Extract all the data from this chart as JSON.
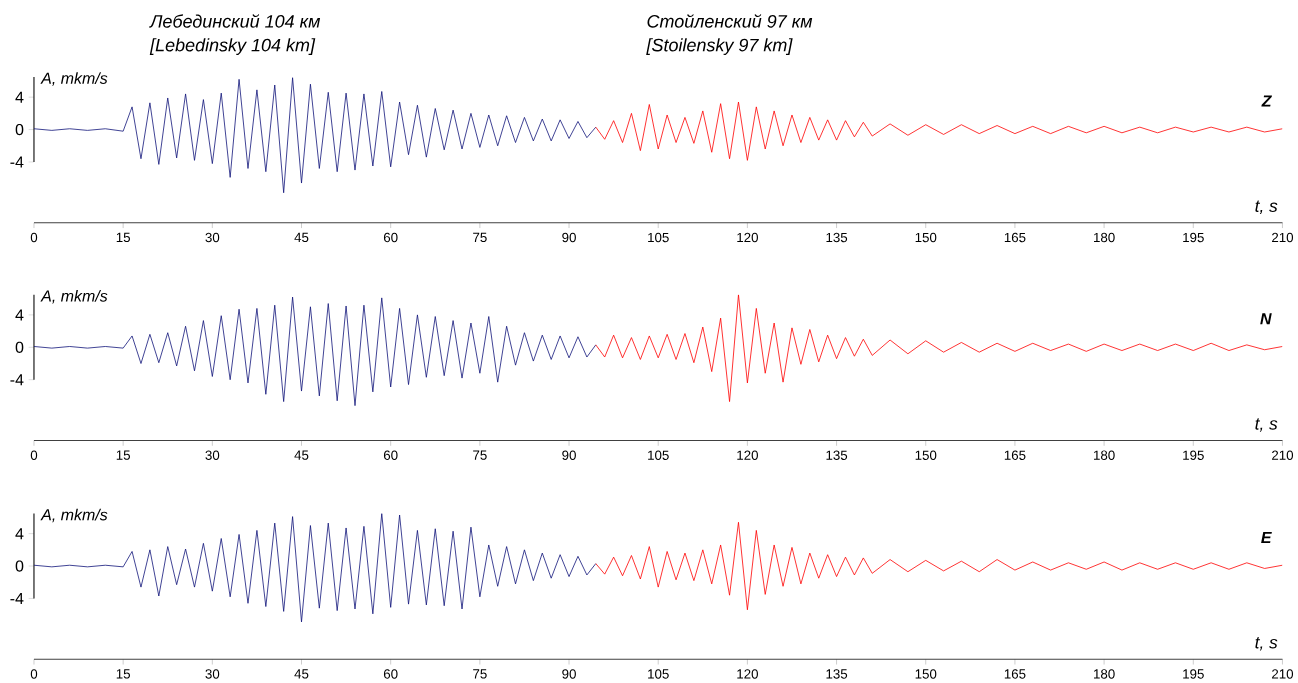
{
  "chart_data": [
    {
      "type": "line",
      "title": "Z",
      "xlabel": "t, s",
      "ylabel": "A, mkm/s",
      "xlim": [
        0,
        210
      ],
      "xticks": [
        0,
        15,
        30,
        45,
        60,
        75,
        90,
        105,
        120,
        135,
        150,
        165,
        180,
        195,
        210
      ],
      "ylim": [
        -11.5,
        6.5
      ],
      "yticks": [
        -4,
        0,
        4
      ],
      "annotations": [
        "Лебединский 104 км",
        "[Lebedinsky 104 km]",
        "Стойленский 97 км",
        "[Stoilensky 97 km]"
      ],
      "series": [
        {
          "color": "#10147a",
          "x": [
            0,
            3,
            6,
            9,
            12,
            15,
            16.5,
            18,
            19.5,
            21,
            22.5,
            24,
            25.5,
            27,
            28.5,
            30,
            31.5,
            33,
            34.5,
            36,
            37.5,
            39,
            40.5,
            42,
            43.5,
            45,
            46.5,
            48,
            49.5,
            51,
            52.5,
            54,
            55.5,
            57,
            58.5,
            60,
            61.5,
            63,
            64.5,
            66,
            67.5,
            69,
            70.5,
            72,
            73.5,
            75,
            76.5,
            78,
            79.5,
            81,
            82.5,
            84,
            85.5,
            87,
            88.5,
            90,
            91.5,
            93,
            94.5
          ],
          "values": [
            0.1,
            -0.1,
            0.1,
            -0.1,
            0.1,
            -0.2,
            2.8,
            -3.6,
            3.3,
            -4.3,
            3.9,
            -3.5,
            4.4,
            -3.8,
            3.7,
            -4.2,
            4.5,
            -5.9,
            6.2,
            -4.8,
            4.9,
            -5.2,
            5.5,
            -7.8,
            6.4,
            -6.6,
            5.6,
            -4.8,
            4.6,
            -5.2,
            4.5,
            -5.0,
            4.4,
            -4.5,
            4.7,
            -4.6,
            3.4,
            -3.1,
            3.0,
            -3.4,
            2.6,
            -2.5,
            2.4,
            -2.4,
            2.0,
            -2.2,
            1.8,
            -2.0,
            1.7,
            -1.6,
            1.5,
            -1.4,
            1.3,
            -1.4,
            1.2,
            -1.1,
            1.0,
            -1.0,
            0.3
          ]
        },
        {
          "color": "#ff0000",
          "x": [
            94.5,
            96,
            97.5,
            99,
            100.5,
            102,
            103.5,
            105,
            106.5,
            108,
            109.5,
            111,
            112.5,
            114,
            115.5,
            117,
            118.5,
            120,
            121.5,
            123,
            124.5,
            126,
            127.5,
            129,
            130.5,
            132,
            133.5,
            135,
            136.5,
            138,
            139.5,
            141,
            144,
            147,
            150,
            153,
            156,
            159,
            162,
            165,
            168,
            171,
            174,
            177,
            180,
            183,
            186,
            189,
            192,
            195,
            198,
            201,
            204,
            207,
            210
          ],
          "values": [
            0.3,
            -1.2,
            1.1,
            -1.6,
            2.0,
            -2.6,
            3.1,
            -2.4,
            1.8,
            -1.6,
            1.5,
            -1.7,
            2.3,
            -2.8,
            3.2,
            -3.6,
            3.4,
            -3.8,
            2.8,
            -2.4,
            2.3,
            -2.0,
            1.8,
            -1.6,
            1.5,
            -1.3,
            1.2,
            -1.3,
            1.1,
            -0.9,
            0.9,
            -0.8,
            0.7,
            -0.7,
            0.6,
            -0.6,
            0.6,
            -0.5,
            0.5,
            -0.5,
            0.4,
            -0.5,
            0.4,
            -0.4,
            0.4,
            -0.4,
            0.3,
            -0.4,
            0.3,
            -0.3,
            0.3,
            -0.3,
            0.3,
            -0.3,
            0.1
          ]
        }
      ]
    },
    {
      "type": "line",
      "title": "N",
      "xlabel": "t, s",
      "ylabel": "A, mkm/s",
      "xlim": [
        0,
        210
      ],
      "xticks": [
        0,
        15,
        30,
        45,
        60,
        75,
        90,
        105,
        120,
        135,
        150,
        165,
        180,
        195,
        210
      ],
      "ylim": [
        -11.5,
        6.5
      ],
      "yticks": [
        -4,
        0,
        4
      ],
      "series": [
        {
          "color": "#10147a",
          "x": [
            0,
            3,
            6,
            9,
            12,
            15,
            16.5,
            18,
            19.5,
            21,
            22.5,
            24,
            25.5,
            27,
            28.5,
            30,
            31.5,
            33,
            34.5,
            36,
            37.5,
            39,
            40.5,
            42,
            43.5,
            45,
            46.5,
            48,
            49.5,
            51,
            52.5,
            54,
            55.5,
            57,
            58.5,
            60,
            61.5,
            63,
            64.5,
            66,
            67.5,
            69,
            70.5,
            72,
            73.5,
            75,
            76.5,
            78,
            79.5,
            81,
            82.5,
            84,
            85.5,
            87,
            88.5,
            90,
            91.5,
            93,
            94.5
          ],
          "values": [
            0.1,
            -0.1,
            0.1,
            -0.1,
            0.1,
            -0.1,
            1.4,
            -2.0,
            1.6,
            -1.9,
            1.8,
            -2.3,
            2.6,
            -2.9,
            3.3,
            -3.6,
            3.9,
            -4.0,
            4.7,
            -4.4,
            4.8,
            -5.8,
            5.2,
            -6.7,
            6.2,
            -5.4,
            5.0,
            -6.0,
            5.4,
            -6.6,
            5.1,
            -7.2,
            5.2,
            -5.5,
            6.1,
            -4.9,
            4.8,
            -4.6,
            4.0,
            -3.7,
            3.8,
            -3.5,
            3.3,
            -3.8,
            3.0,
            -3.2,
            3.8,
            -4.3,
            2.6,
            -2.2,
            1.8,
            -1.7,
            1.5,
            -1.5,
            1.4,
            -1.3,
            1.3,
            -1.2,
            0.3
          ]
        },
        {
          "color": "#ff0000",
          "x": [
            94.5,
            96,
            97.5,
            99,
            100.5,
            102,
            103.5,
            105,
            106.5,
            108,
            109.5,
            111,
            112.5,
            114,
            115.5,
            117,
            118.5,
            120,
            121.5,
            123,
            124.5,
            126,
            127.5,
            129,
            130.5,
            132,
            133.5,
            135,
            136.5,
            138,
            139.5,
            141,
            144,
            147,
            150,
            153,
            156,
            159,
            162,
            165,
            168,
            171,
            174,
            177,
            180,
            183,
            186,
            189,
            192,
            195,
            198,
            201,
            204,
            207,
            210
          ],
          "values": [
            0.3,
            -1.2,
            1.5,
            -1.3,
            1.2,
            -1.5,
            1.4,
            -1.3,
            1.6,
            -1.5,
            1.7,
            -1.9,
            2.5,
            -3.0,
            3.6,
            -6.7,
            6.5,
            -4.4,
            4.8,
            -3.2,
            3.0,
            -4.3,
            2.4,
            -2.1,
            2.2,
            -1.8,
            1.5,
            -1.4,
            1.2,
            -1.1,
            1.0,
            -1.0,
            0.9,
            -0.8,
            0.8,
            -0.6,
            0.6,
            -0.6,
            0.5,
            -0.5,
            0.5,
            -0.4,
            0.4,
            -0.5,
            0.4,
            -0.4,
            0.4,
            -0.4,
            0.4,
            -0.4,
            0.5,
            -0.4,
            0.3,
            -0.3,
            0.1
          ]
        }
      ]
    },
    {
      "type": "line",
      "title": "E",
      "xlabel": "t, s",
      "ylabel": "A, mkm/s",
      "xlim": [
        0,
        210
      ],
      "xticks": [
        0,
        15,
        30,
        45,
        60,
        75,
        90,
        105,
        120,
        135,
        150,
        165,
        180,
        195,
        210
      ],
      "ylim": [
        -11.5,
        6.5
      ],
      "yticks": [
        -4,
        0,
        4
      ],
      "series": [
        {
          "color": "#10147a",
          "x": [
            0,
            3,
            6,
            9,
            12,
            15,
            16.5,
            18,
            19.5,
            21,
            22.5,
            24,
            25.5,
            27,
            28.5,
            30,
            31.5,
            33,
            34.5,
            36,
            37.5,
            39,
            40.5,
            42,
            43.5,
            45,
            46.5,
            48,
            49.5,
            51,
            52.5,
            54,
            55.5,
            57,
            58.5,
            60,
            61.5,
            63,
            64.5,
            66,
            67.5,
            69,
            70.5,
            72,
            73.5,
            75,
            76.5,
            78,
            79.5,
            81,
            82.5,
            84,
            85.5,
            87,
            88.5,
            90,
            91.5,
            93,
            94.5
          ],
          "values": [
            0.1,
            -0.1,
            0.1,
            -0.1,
            0.1,
            -0.1,
            1.8,
            -2.6,
            2.0,
            -3.7,
            2.4,
            -2.3,
            2.1,
            -2.6,
            2.8,
            -3.1,
            3.4,
            -3.8,
            3.9,
            -4.6,
            4.4,
            -5.0,
            5.3,
            -5.6,
            6.1,
            -6.9,
            5.0,
            -5.2,
            5.3,
            -5.5,
            4.7,
            -5.3,
            4.9,
            -5.9,
            6.5,
            -5.1,
            6.3,
            -4.7,
            4.4,
            -4.8,
            4.6,
            -4.9,
            4.3,
            -5.3,
            4.8,
            -3.8,
            2.6,
            -2.5,
            2.4,
            -2.2,
            2.0,
            -1.8,
            1.6,
            -1.5,
            1.4,
            -1.3,
            1.2,
            -1.1,
            0.3
          ]
        },
        {
          "color": "#ff0000",
          "x": [
            94.5,
            96,
            97.5,
            99,
            100.5,
            102,
            103.5,
            105,
            106.5,
            108,
            109.5,
            111,
            112.5,
            114,
            115.5,
            117,
            118.5,
            120,
            121.5,
            123,
            124.5,
            126,
            127.5,
            129,
            130.5,
            132,
            133.5,
            135,
            136.5,
            138,
            139.5,
            141,
            144,
            147,
            150,
            153,
            156,
            159,
            162,
            165,
            168,
            171,
            174,
            177,
            180,
            183,
            186,
            189,
            192,
            195,
            198,
            201,
            204,
            207,
            210
          ],
          "values": [
            0.3,
            -1.0,
            1.1,
            -1.2,
            1.3,
            -1.6,
            2.4,
            -2.6,
            1.8,
            -1.7,
            1.6,
            -1.8,
            2.0,
            -2.2,
            2.6,
            -3.6,
            5.4,
            -5.4,
            4.4,
            -3.5,
            2.6,
            -2.5,
            2.3,
            -2.2,
            1.6,
            -1.5,
            1.4,
            -1.3,
            1.1,
            -1.1,
            1.0,
            -0.9,
            0.8,
            -0.7,
            0.7,
            -0.6,
            0.6,
            -0.7,
            0.8,
            -0.5,
            0.5,
            -0.5,
            0.4,
            -0.4,
            0.5,
            -0.5,
            0.4,
            -0.4,
            0.4,
            -0.4,
            0.4,
            -0.4,
            0.4,
            -0.3,
            0.1
          ]
        }
      ]
    }
  ]
}
